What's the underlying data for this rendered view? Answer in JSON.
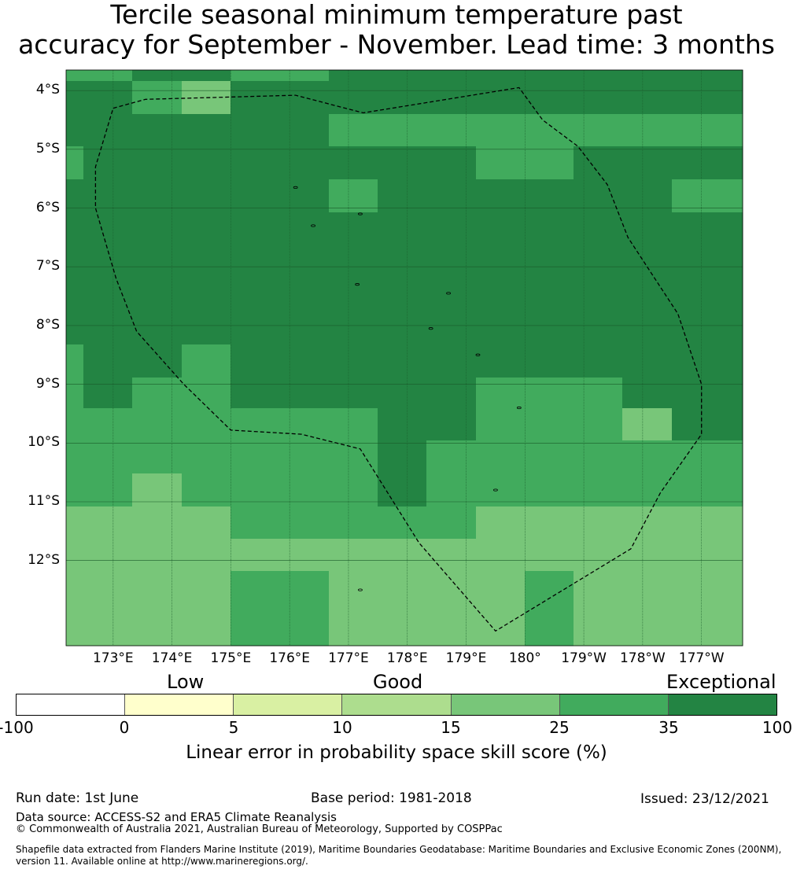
{
  "title": {
    "line1": "Tercile seasonal minimum temperature past",
    "line2": "accuracy for September - November. Lead time: 3 months"
  },
  "map": {
    "lon_labels": [
      "173°E",
      "174°E",
      "175°E",
      "176°E",
      "177°E",
      "178°E",
      "179°E",
      "180°",
      "179°W",
      "178°W",
      "177°W"
    ],
    "lat_labels": [
      "4°S",
      "5°S",
      "6°S",
      "7°S",
      "8°S",
      "9°S",
      "10°S",
      "11°S",
      "12°S"
    ],
    "lon_range": [
      172.2,
      183.7
    ],
    "lat_range": [
      -3.65,
      -13.45
    ],
    "grid_lon_deg": [
      173,
      174,
      175,
      176,
      177,
      178,
      179,
      180,
      181,
      182,
      183
    ],
    "grid_lat_deg": [
      -4,
      -5,
      -6,
      -7,
      -8,
      -9,
      -10,
      -11,
      -12
    ],
    "cell_category_grid_note": "category index per cell: 5 = 25-35, 6 = 35-100, 4 = 15-25",
    "eez_boundary_lonlat": [
      [
        173.0,
        -4.3
      ],
      [
        173.55,
        -4.15
      ],
      [
        176.1,
        -4.08
      ],
      [
        177.25,
        -4.38
      ],
      [
        179.9,
        -3.95
      ],
      [
        180.3,
        -4.5
      ],
      [
        180.9,
        -4.95
      ],
      [
        181.4,
        -5.6
      ],
      [
        181.75,
        -6.5
      ],
      [
        182.6,
        -7.8
      ],
      [
        183.0,
        -9.0
      ],
      [
        183.0,
        -9.85
      ],
      [
        182.3,
        -10.85
      ],
      [
        181.8,
        -11.8
      ],
      [
        179.5,
        -13.2
      ],
      [
        178.2,
        -11.7
      ],
      [
        177.2,
        -10.1
      ],
      [
        176.2,
        -9.85
      ],
      [
        175.0,
        -9.78
      ],
      [
        174.2,
        -9.0
      ],
      [
        173.4,
        -8.1
      ],
      [
        173.05,
        -7.2
      ],
      [
        172.7,
        -6.0
      ],
      [
        172.7,
        -5.3
      ],
      [
        173.0,
        -4.3
      ]
    ],
    "islands_lonlat": [
      [
        176.1,
        -5.65
      ],
      [
        177.2,
        -6.1
      ],
      [
        176.4,
        -6.3
      ],
      [
        177.15,
        -7.3
      ],
      [
        178.7,
        -7.45
      ],
      [
        178.4,
        -8.05
      ],
      [
        179.2,
        -8.5
      ],
      [
        179.9,
        -9.4
      ],
      [
        179.5,
        -10.8
      ],
      [
        177.2,
        -12.5
      ]
    ]
  },
  "legend": {
    "categories": [
      "Low",
      "Good",
      "Exceptional"
    ],
    "ticks": [
      "-100",
      "0",
      "5",
      "10",
      "15",
      "25",
      "35",
      "100"
    ],
    "colors": [
      "#ffffff",
      "#ffffcc",
      "#d9f0a3",
      "#addd8e",
      "#78c679",
      "#41ab5d",
      "#238443"
    ],
    "label": "Linear error in probability space skill score (%)"
  },
  "footer": {
    "run_date": "Run date: 1st June",
    "base_period": "Base period: 1981-2018",
    "issued": "Issued: 23/12/2021",
    "data_source": "Data source: ACCESS-S2 and ERA5 Climate Reanalysis",
    "copyright": "© Commonwealth of Australia 2021, Australian Bureau of Meteorology, Supported by COSPPac",
    "shapefile_line1": "Shapefile data extracted from Flanders Marine Institute (2019), Maritime Boundaries Geodatabase: Maritime Boundaries and Exclusive Economic Zones (200NM),",
    "shapefile_line2": "version 11. Available online at http://www.marineregions.org/."
  }
}
